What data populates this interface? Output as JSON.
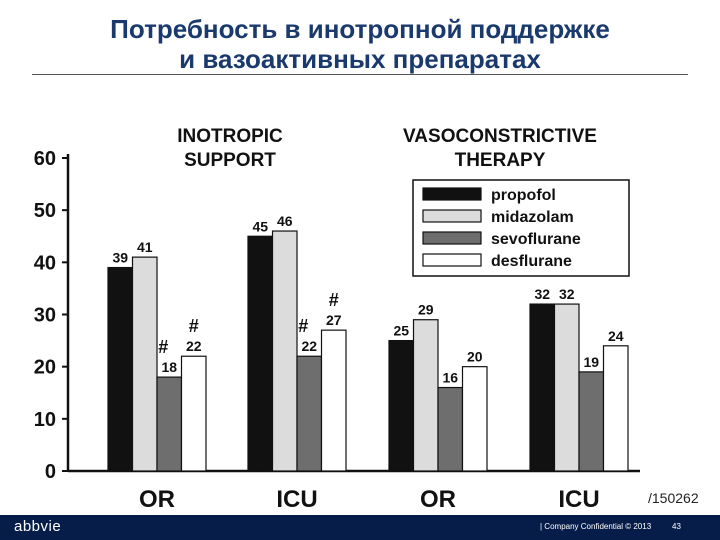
{
  "title": {
    "line1": "Потребность в инотропной поддержке",
    "line2": "и вазоактивных препаратах"
  },
  "chart_data": {
    "type": "bar",
    "ylim": [
      0,
      60
    ],
    "yticks": [
      "0",
      "10",
      "20",
      "30",
      "40",
      "50",
      "60"
    ],
    "categories": [
      "OR",
      "ICU",
      "OR",
      "ICU"
    ],
    "group_headers": [
      {
        "label_line1": "INOTROPIC",
        "label_line2": "SUPPORT"
      },
      {
        "label_line1": "VASOCONSTRICTIVE",
        "label_line2": "THERAPY"
      }
    ],
    "series": [
      {
        "name": "propofol",
        "color": "#111111",
        "values": [
          39,
          45,
          25,
          32
        ]
      },
      {
        "name": "midazolam",
        "color": "#dcdcdc",
        "values": [
          41,
          46,
          29,
          32
        ]
      },
      {
        "name": "sevoflurane",
        "color": "#6e6e6e",
        "values": [
          18,
          22,
          16,
          19
        ]
      },
      {
        "name": "desflurane",
        "color": "#ffffff",
        "values": [
          22,
          27,
          20,
          24
        ]
      }
    ],
    "significance_marks": [
      {
        "category_index": 0,
        "series_index": 2,
        "mark": "#"
      },
      {
        "category_index": 0,
        "series_index": 3,
        "mark": "#"
      },
      {
        "category_index": 1,
        "series_index": 2,
        "mark": "#"
      },
      {
        "category_index": 1,
        "series_index": 3,
        "mark": "#"
      }
    ],
    "legend_position": "top-right"
  },
  "doc_code": "/150262",
  "footer": {
    "logo": "abbvie",
    "confidential": "| Company Confidential © 2013",
    "page": "43"
  }
}
